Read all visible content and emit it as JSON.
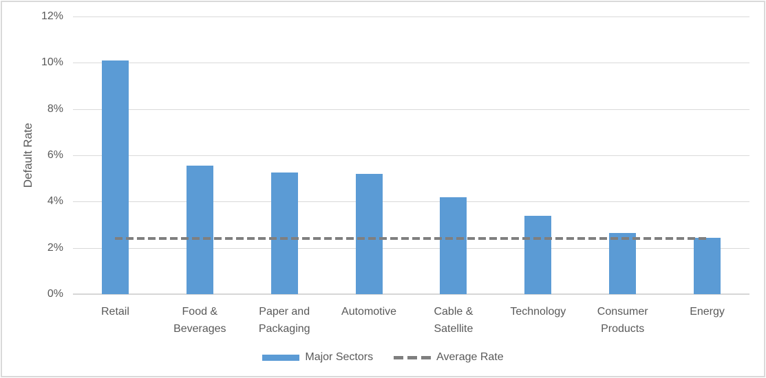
{
  "chart_data": {
    "type": "bar",
    "title": "",
    "categories": [
      "Retail",
      "Food & Beverages",
      "Paper and Packaging",
      "Automotive",
      "Cable & Satellite",
      "Technology",
      "Consumer Products",
      "Energy"
    ],
    "series": [
      {
        "name": "Major Sectors",
        "type": "bar",
        "values": [
          10.1,
          5.55,
          5.25,
          5.2,
          4.2,
          3.4,
          2.65,
          2.45
        ],
        "color": "#5b9bd5"
      },
      {
        "name": "Average Rate",
        "type": "dashed-line",
        "value": 2.4,
        "color": "#7f7f7f"
      }
    ],
    "xlabel": "",
    "ylabel": "Default Rate",
    "ylim": [
      0,
      12
    ],
    "ytick_step": 2,
    "yticks": [
      "0%",
      "2%",
      "4%",
      "6%",
      "8%",
      "10%",
      "12%"
    ],
    "grid": true,
    "legend_position": "bottom"
  },
  "legend": {
    "items": [
      {
        "label": "Major Sectors",
        "swatch": "bar"
      },
      {
        "label": "Average Rate",
        "swatch": "dashed-line"
      }
    ]
  },
  "colors": {
    "bar": "#5b9bd5",
    "average_line": "#7f7f7f",
    "gridline": "#d9d9d9",
    "axis_line": "#d6d6d6",
    "text": "#595959",
    "frame_border": "#d9d9d9",
    "background": "#ffffff"
  }
}
